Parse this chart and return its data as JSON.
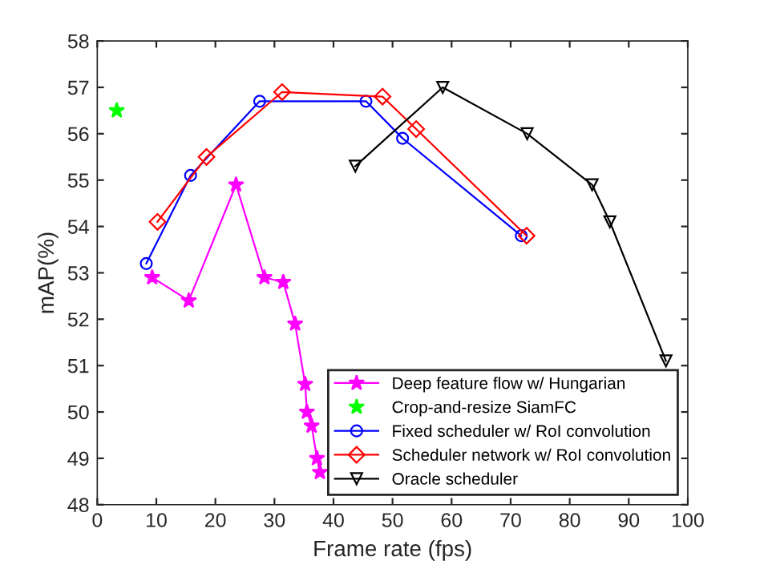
{
  "chart_data": {
    "type": "line",
    "xlabel": "Frame rate (fps)",
    "ylabel": "mAP(%)",
    "xlim": [
      0,
      100
    ],
    "ylim": [
      48,
      58
    ],
    "xticks": [
      0,
      10,
      20,
      30,
      40,
      50,
      60,
      70,
      80,
      90,
      100
    ],
    "yticks": [
      48,
      49,
      50,
      51,
      52,
      53,
      54,
      55,
      56,
      57,
      58
    ],
    "grid": false,
    "legend": "bottom right",
    "series": [
      {
        "name": "Deep feature flow w/ Hungarian",
        "color": "#ff00ff",
        "marker": "star",
        "x": [
          9.3,
          15.5,
          23.5,
          28.3,
          31.5,
          33.5,
          35.2,
          35.5,
          36.3,
          37.2,
          37.7
        ],
        "values": [
          52.9,
          52.4,
          54.9,
          52.9,
          52.8,
          51.9,
          50.6,
          50.0,
          49.7,
          49.0,
          48.7
        ]
      },
      {
        "name": "Crop-and-resize SiamFC",
        "color": "#00ff00",
        "marker": "star",
        "type": "scatter",
        "x": [
          3.3
        ],
        "values": [
          56.5
        ]
      },
      {
        "name": "Fixed scheduler w/ RoI convolution",
        "color": "#0000ff",
        "marker": "circle",
        "x": [
          8.3,
          15.8,
          27.5,
          45.5,
          51.7,
          71.8
        ],
        "values": [
          53.2,
          55.1,
          56.7,
          56.7,
          55.9,
          53.8
        ]
      },
      {
        "name": "Scheduler network w/ RoI convolution",
        "color": "#ff0000",
        "marker": "diamond",
        "x": [
          10.2,
          18.5,
          31.3,
          48.3,
          54.0,
          72.7
        ],
        "values": [
          54.1,
          55.5,
          56.9,
          56.8,
          56.1,
          53.8
        ]
      },
      {
        "name": "Oracle scheduler",
        "color": "#000000",
        "marker": "triangle",
        "x": [
          43.7,
          58.5,
          72.8,
          83.8,
          86.8,
          96.3
        ],
        "values": [
          55.3,
          57.0,
          56.0,
          54.9,
          54.1,
          51.1
        ]
      }
    ]
  }
}
